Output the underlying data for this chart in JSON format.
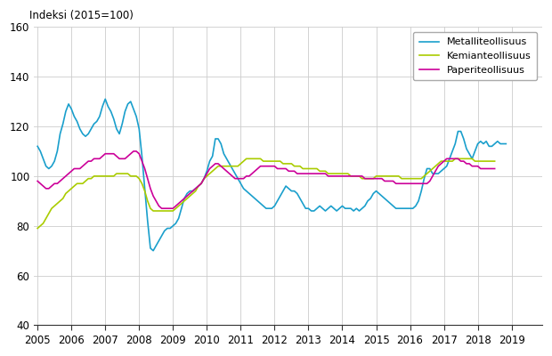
{
  "title": "Indeksi (2015=100)",
  "ylim": [
    40,
    160
  ],
  "yticks": [
    40,
    60,
    80,
    100,
    120,
    140,
    160
  ],
  "xlim": [
    2004.9,
    2019.9
  ],
  "xticks": [
    2005,
    2006,
    2007,
    2008,
    2009,
    2010,
    2011,
    2012,
    2013,
    2014,
    2015,
    2016,
    2017,
    2018,
    2019
  ],
  "legend_labels": [
    "Metalliteollisuus",
    "Kemianteollisuus",
    "Paperiteollisuus"
  ],
  "colors": [
    "#1a9fcc",
    "#aacc00",
    "#cc0099"
  ],
  "line_width": 1.2,
  "metalliteollisuus": [
    112,
    110,
    107,
    104,
    103,
    104,
    106,
    110,
    117,
    121,
    126,
    129,
    127,
    124,
    122,
    119,
    117,
    116,
    117,
    119,
    121,
    122,
    124,
    128,
    131,
    128,
    126,
    123,
    119,
    117,
    121,
    126,
    129,
    130,
    127,
    124,
    119,
    108,
    95,
    82,
    71,
    70,
    72,
    74,
    76,
    78,
    79,
    79,
    80,
    81,
    83,
    87,
    91,
    93,
    94,
    94,
    95,
    96,
    97,
    99,
    102,
    106,
    108,
    115,
    115,
    113,
    109,
    107,
    105,
    103,
    101,
    99,
    97,
    95,
    94,
    93,
    92,
    91,
    90,
    89,
    88,
    87,
    87,
    87,
    88,
    90,
    92,
    94,
    96,
    95,
    94,
    94,
    93,
    91,
    89,
    87,
    87,
    86,
    86,
    87,
    88,
    87,
    86,
    87,
    88,
    87,
    86,
    87,
    88,
    87,
    87,
    87,
    86,
    87,
    86,
    87,
    88,
    90,
    91,
    93,
    94,
    93,
    92,
    91,
    90,
    89,
    88,
    87,
    87,
    87,
    87,
    87,
    87,
    87,
    88,
    90,
    94,
    99,
    103,
    103,
    101,
    101,
    101,
    102,
    103,
    104,
    107,
    110,
    113,
    118,
    118,
    115,
    111,
    109,
    107,
    110,
    113,
    114,
    113,
    114,
    112,
    112,
    113,
    114,
    113,
    113,
    113
  ],
  "kemianteollisuus": [
    79,
    80,
    81,
    83,
    85,
    87,
    88,
    89,
    90,
    91,
    93,
    94,
    95,
    96,
    97,
    97,
    97,
    98,
    99,
    99,
    100,
    100,
    100,
    100,
    100,
    100,
    100,
    100,
    101,
    101,
    101,
    101,
    101,
    100,
    100,
    100,
    99,
    97,
    94,
    90,
    87,
    86,
    86,
    86,
    86,
    86,
    86,
    86,
    86,
    87,
    88,
    89,
    90,
    91,
    92,
    93,
    94,
    96,
    97,
    99,
    100,
    101,
    102,
    103,
    104,
    104,
    104,
    104,
    104,
    104,
    104,
    104,
    105,
    106,
    107,
    107,
    107,
    107,
    107,
    107,
    106,
    106,
    106,
    106,
    106,
    106,
    106,
    105,
    105,
    105,
    105,
    104,
    104,
    104,
    103,
    103,
    103,
    103,
    103,
    103,
    102,
    102,
    102,
    101,
    101,
    101,
    101,
    101,
    101,
    101,
    101,
    100,
    100,
    100,
    100,
    99,
    99,
    99,
    99,
    99,
    100,
    100,
    100,
    100,
    100,
    100,
    100,
    100,
    100,
    99,
    99,
    99,
    99,
    99,
    99,
    99,
    99,
    100,
    101,
    102,
    103,
    104,
    105,
    106,
    106,
    106,
    106,
    106,
    107,
    107,
    107,
    107,
    107,
    107,
    107,
    106,
    106,
    106,
    106,
    106,
    106,
    106,
    106
  ],
  "paperiteollisuus": [
    98,
    97,
    96,
    95,
    95,
    96,
    97,
    97,
    98,
    99,
    100,
    101,
    102,
    103,
    103,
    103,
    104,
    105,
    106,
    106,
    107,
    107,
    107,
    108,
    109,
    109,
    109,
    109,
    108,
    107,
    107,
    107,
    108,
    109,
    110,
    110,
    109,
    106,
    103,
    99,
    95,
    92,
    90,
    88,
    87,
    87,
    87,
    87,
    87,
    88,
    89,
    90,
    91,
    92,
    93,
    94,
    95,
    96,
    97,
    99,
    101,
    103,
    104,
    105,
    105,
    104,
    103,
    102,
    101,
    100,
    99,
    99,
    99,
    99,
    100,
    100,
    101,
    102,
    103,
    104,
    104,
    104,
    104,
    104,
    104,
    103,
    103,
    103,
    103,
    102,
    102,
    102,
    101,
    101,
    101,
    101,
    101,
    101,
    101,
    101,
    101,
    101,
    101,
    100,
    100,
    100,
    100,
    100,
    100,
    100,
    100,
    100,
    100,
    100,
    100,
    100,
    99,
    99,
    99,
    99,
    99,
    99,
    99,
    98,
    98,
    98,
    98,
    97,
    97,
    97,
    97,
    97,
    97,
    97,
    97,
    97,
    97,
    97,
    97,
    98,
    100,
    102,
    104,
    105,
    106,
    107,
    107,
    107,
    107,
    107,
    106,
    106,
    105,
    105,
    104,
    104,
    104,
    103,
    103,
    103,
    103,
    103,
    103
  ]
}
